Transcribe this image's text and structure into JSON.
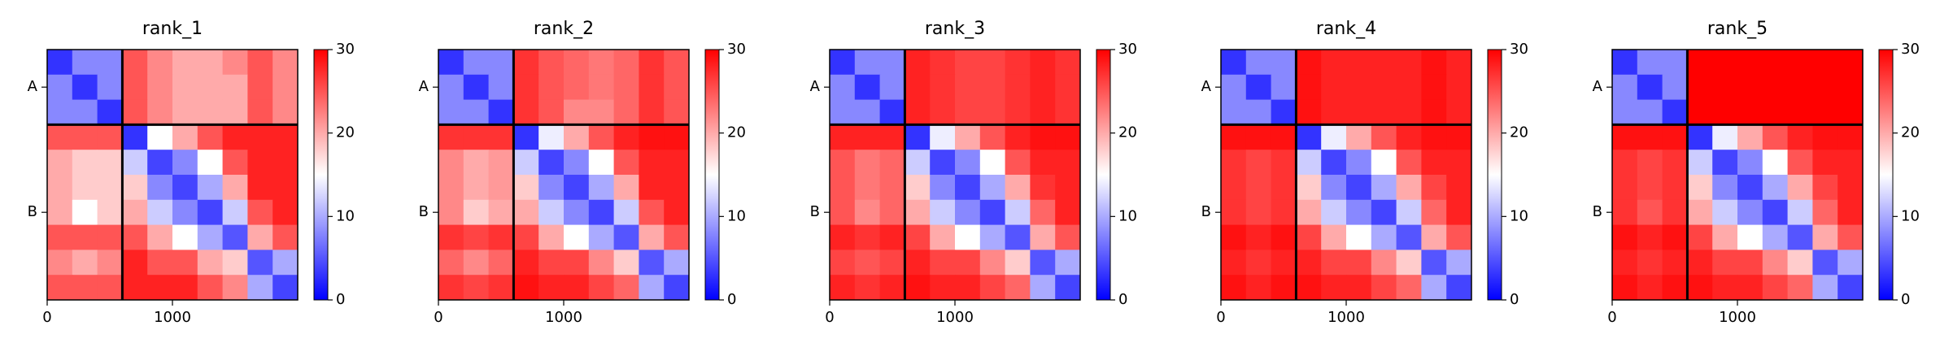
{
  "chart_data": [
    {
      "type": "heatmap",
      "title": "rank_1",
      "bins": [
        0,
        200,
        400,
        600,
        800,
        1000,
        1200,
        1400,
        1600,
        1800,
        2000
      ],
      "values": [
        [
          3,
          8,
          8,
          25,
          22,
          20,
          20,
          22,
          25,
          22
        ],
        [
          8,
          3,
          8,
          25,
          22,
          20,
          20,
          20,
          25,
          22
        ],
        [
          8,
          8,
          3,
          25,
          22,
          20,
          20,
          20,
          25,
          22
        ],
        [
          25,
          25,
          25,
          3,
          15,
          20,
          25,
          28,
          28,
          28
        ],
        [
          20,
          18,
          18,
          12,
          4,
          8,
          15,
          25,
          28,
          28
        ],
        [
          20,
          18,
          18,
          18,
          8,
          4,
          10,
          20,
          28,
          28
        ],
        [
          20,
          15,
          18,
          20,
          12,
          8,
          4,
          12,
          25,
          28
        ],
        [
          25,
          25,
          25,
          25,
          20,
          15,
          10,
          5,
          20,
          25
        ],
        [
          22,
          20,
          22,
          28,
          25,
          25,
          20,
          18,
          5,
          10
        ],
        [
          25,
          25,
          25,
          28,
          28,
          28,
          25,
          22,
          10,
          4
        ]
      ],
      "xlim": [
        0,
        2000
      ],
      "xticks": [
        0,
        1000
      ],
      "ylim": [
        2000,
        0
      ],
      "yticks": [
        {
          "value": 300,
          "label": "A"
        },
        {
          "value": 1300,
          "label": "B"
        }
      ],
      "boundaries": [
        600
      ],
      "clim": [
        0,
        30
      ],
      "cticks": [
        0,
        10,
        20,
        30
      ]
    },
    {
      "type": "heatmap",
      "title": "rank_2",
      "bins": [
        0,
        200,
        400,
        600,
        800,
        1000,
        1200,
        1400,
        1600,
        1800,
        2000
      ],
      "values": [
        [
          3,
          8,
          8,
          27,
          25,
          24,
          23,
          24,
          27,
          25
        ],
        [
          8,
          3,
          8,
          27,
          25,
          24,
          23,
          24,
          27,
          25
        ],
        [
          8,
          8,
          3,
          27,
          25,
          22,
          22,
          24,
          27,
          25
        ],
        [
          27,
          27,
          27,
          3,
          14,
          20,
          25,
          28,
          29,
          29
        ],
        [
          22,
          20,
          21,
          12,
          4,
          8,
          15,
          25,
          28,
          28
        ],
        [
          22,
          20,
          21,
          18,
          8,
          4,
          10,
          20,
          28,
          28
        ],
        [
          22,
          18,
          20,
          20,
          12,
          8,
          4,
          12,
          25,
          28
        ],
        [
          27,
          26,
          27,
          26,
          20,
          15,
          10,
          5,
          20,
          25
        ],
        [
          24,
          22,
          24,
          28,
          26,
          26,
          22,
          18,
          5,
          10
        ],
        [
          27,
          26,
          27,
          29,
          28,
          28,
          26,
          24,
          10,
          4
        ]
      ],
      "xlim": [
        0,
        2000
      ],
      "xticks": [
        0,
        1000
      ],
      "ylim": [
        2000,
        0
      ],
      "yticks": [
        {
          "value": 300,
          "label": "A"
        },
        {
          "value": 1300,
          "label": "B"
        }
      ],
      "boundaries": [
        600
      ],
      "clim": [
        0,
        30
      ],
      "cticks": [
        0,
        10,
        20,
        30
      ]
    },
    {
      "type": "heatmap",
      "title": "rank_3",
      "bins": [
        0,
        200,
        400,
        600,
        800,
        1000,
        1200,
        1400,
        1600,
        1800,
        2000
      ],
      "values": [
        [
          3,
          8,
          8,
          28,
          27,
          26,
          26,
          27,
          28,
          27
        ],
        [
          8,
          3,
          8,
          28,
          27,
          26,
          26,
          27,
          28,
          27
        ],
        [
          8,
          8,
          3,
          28,
          27,
          26,
          26,
          27,
          28,
          27
        ],
        [
          28,
          28,
          28,
          3,
          14,
          20,
          25,
          28,
          29,
          29
        ],
        [
          25,
          23,
          24,
          12,
          4,
          8,
          15,
          25,
          28,
          28
        ],
        [
          25,
          23,
          24,
          18,
          8,
          4,
          10,
          20,
          27,
          28
        ],
        [
          25,
          22,
          24,
          20,
          12,
          8,
          4,
          12,
          24,
          28
        ],
        [
          28,
          27,
          28,
          26,
          20,
          15,
          10,
          5,
          20,
          25
        ],
        [
          26,
          25,
          26,
          28,
          26,
          26,
          22,
          18,
          5,
          10
        ],
        [
          28,
          27,
          28,
          29,
          28,
          28,
          26,
          24,
          10,
          4
        ]
      ],
      "xlim": [
        0,
        2000
      ],
      "xticks": [
        0,
        1000
      ],
      "ylim": [
        2000,
        0
      ],
      "yticks": [
        {
          "value": 300,
          "label": "A"
        },
        {
          "value": 1300,
          "label": "B"
        }
      ],
      "boundaries": [
        600
      ],
      "clim": [
        0,
        30
      ],
      "cticks": [
        0,
        10,
        20,
        30
      ]
    },
    {
      "type": "heatmap",
      "title": "rank_4",
      "bins": [
        0,
        200,
        400,
        600,
        800,
        1000,
        1200,
        1400,
        1600,
        1800,
        2000
      ],
      "values": [
        [
          3,
          8,
          8,
          29,
          28,
          28,
          28,
          28,
          29,
          28
        ],
        [
          8,
          3,
          8,
          29,
          28,
          28,
          28,
          28,
          29,
          28
        ],
        [
          8,
          8,
          3,
          29,
          28,
          28,
          28,
          28,
          29,
          28
        ],
        [
          29,
          29,
          29,
          3,
          14,
          20,
          25,
          28,
          29,
          29
        ],
        [
          27,
          26,
          27,
          12,
          4,
          8,
          15,
          25,
          28,
          28
        ],
        [
          27,
          26,
          27,
          18,
          8,
          4,
          10,
          20,
          26,
          28
        ],
        [
          27,
          26,
          27,
          20,
          12,
          8,
          4,
          12,
          24,
          28
        ],
        [
          29,
          28,
          29,
          26,
          20,
          15,
          10,
          5,
          20,
          25
        ],
        [
          28,
          27,
          28,
          28,
          26,
          26,
          22,
          18,
          5,
          10
        ],
        [
          29,
          28,
          29,
          29,
          28,
          28,
          26,
          24,
          10,
          4
        ]
      ],
      "xlim": [
        0,
        2000
      ],
      "xticks": [
        0,
        1000
      ],
      "ylim": [
        2000,
        0
      ],
      "yticks": [
        {
          "value": 300,
          "label": "A"
        },
        {
          "value": 1300,
          "label": "B"
        }
      ],
      "boundaries": [
        600
      ],
      "clim": [
        0,
        30
      ],
      "cticks": [
        0,
        10,
        20,
        30
      ]
    },
    {
      "type": "heatmap",
      "title": "rank_5",
      "bins": [
        0,
        200,
        400,
        600,
        800,
        1000,
        1200,
        1400,
        1600,
        1800,
        2000
      ],
      "values": [
        [
          3,
          8,
          8,
          30,
          30,
          30,
          30,
          30,
          30,
          30
        ],
        [
          8,
          3,
          8,
          30,
          30,
          30,
          30,
          30,
          30,
          30
        ],
        [
          8,
          8,
          3,
          30,
          30,
          30,
          30,
          30,
          30,
          30
        ],
        [
          29,
          29,
          29,
          3,
          14,
          20,
          25,
          28,
          29,
          29
        ],
        [
          27,
          26,
          27,
          12,
          4,
          8,
          15,
          25,
          28,
          28
        ],
        [
          27,
          26,
          27,
          18,
          8,
          4,
          10,
          20,
          26,
          28
        ],
        [
          27,
          25,
          27,
          20,
          12,
          8,
          4,
          12,
          24,
          28
        ],
        [
          29,
          28,
          29,
          26,
          20,
          15,
          10,
          5,
          20,
          25
        ],
        [
          28,
          27,
          28,
          28,
          26,
          26,
          22,
          18,
          5,
          10
        ],
        [
          29,
          28,
          29,
          29,
          28,
          28,
          26,
          24,
          10,
          4
        ]
      ],
      "xlim": [
        0,
        2000
      ],
      "xticks": [
        0,
        1000
      ],
      "ylim": [
        2000,
        0
      ],
      "yticks": [
        {
          "value": 300,
          "label": "A"
        },
        {
          "value": 1300,
          "label": "B"
        }
      ],
      "boundaries": [
        600
      ],
      "clim": [
        0,
        30
      ],
      "cticks": [
        0,
        10,
        20,
        30
      ]
    }
  ]
}
